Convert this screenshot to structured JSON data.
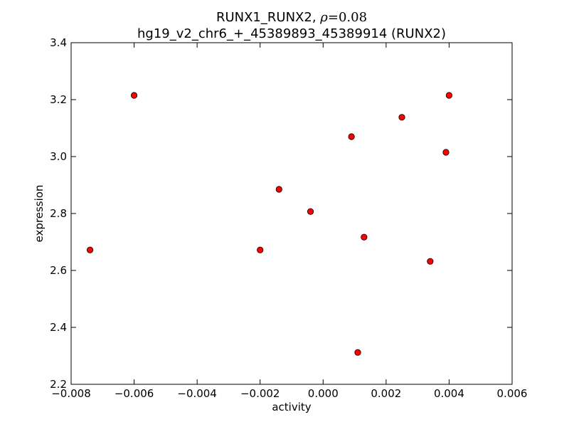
{
  "chart_data": {
    "type": "scatter",
    "title_line1_prefix": "RUNX1_RUNX2, ",
    "title_line1_symbol": "ρ",
    "title_line1_value": "=0.08",
    "title_line2": "hg19_v2_chr6_+_45389893_45389914 (RUNX2)",
    "xlabel": "activity",
    "ylabel": "expression",
    "xlim": [
      -0.008,
      0.006
    ],
    "ylim": [
      2.2,
      3.4
    ],
    "x_ticks": [
      -0.008,
      -0.006,
      -0.004,
      -0.002,
      0.0,
      0.002,
      0.004,
      0.006
    ],
    "x_tick_labels": [
      "−0.008",
      "−0.006",
      "−0.004",
      "−0.002",
      "0.000",
      "0.002",
      "0.004",
      "0.006"
    ],
    "y_ticks": [
      2.2,
      2.4,
      2.6,
      2.8,
      3.0,
      3.2,
      3.4
    ],
    "y_tick_labels": [
      "2.2",
      "2.4",
      "2.6",
      "2.8",
      "3.0",
      "3.2",
      "3.4"
    ],
    "marker_color": "#ff0000",
    "marker_edge_color": "#000000",
    "grid": false,
    "points": [
      {
        "x": -0.0074,
        "y": 2.672
      },
      {
        "x": -0.006,
        "y": 3.215
      },
      {
        "x": -0.002,
        "y": 2.672
      },
      {
        "x": -0.0014,
        "y": 2.885
      },
      {
        "x": -0.0004,
        "y": 2.807
      },
      {
        "x": 0.0009,
        "y": 3.07
      },
      {
        "x": 0.0011,
        "y": 2.312
      },
      {
        "x": 0.0013,
        "y": 2.717
      },
      {
        "x": 0.0025,
        "y": 3.138
      },
      {
        "x": 0.0034,
        "y": 2.632
      },
      {
        "x": 0.0039,
        "y": 3.015
      },
      {
        "x": 0.004,
        "y": 3.215
      }
    ]
  }
}
